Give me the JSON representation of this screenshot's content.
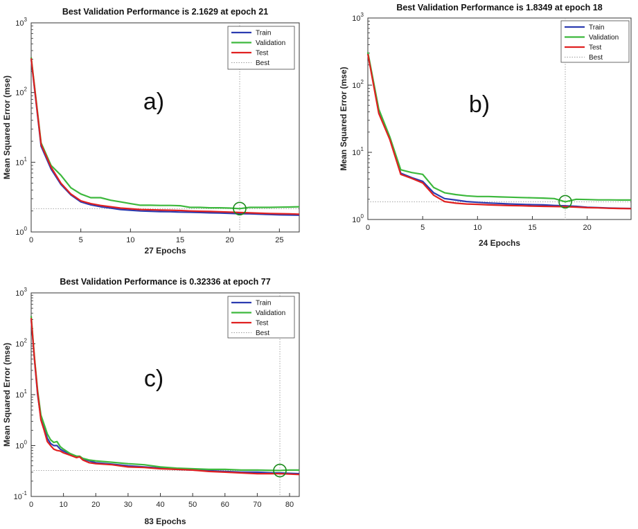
{
  "chart_data": [
    {
      "type": "line",
      "panel_label": "a)",
      "title": "Best Validation Performance is 2.1629 at epoch 21",
      "xlabel": "27 Epochs",
      "ylabel": "Mean Squared Error  (mse)",
      "yscale": "log",
      "xlim": [
        0,
        27
      ],
      "ylim": [
        1,
        1000
      ],
      "xticks": [
        0,
        5,
        10,
        15,
        20,
        25
      ],
      "yticks": [
        1,
        10,
        100,
        1000
      ],
      "ytick_labels": [
        {
          "base": "10",
          "exp": "0"
        },
        {
          "base": "10",
          "exp": "1"
        },
        {
          "base": "10",
          "exp": "2"
        },
        {
          "base": "10",
          "exp": "3"
        }
      ],
      "legend": {
        "position": "top-right",
        "entries": [
          "Train",
          "Validation",
          "Test",
          "Best"
        ]
      },
      "best": {
        "epoch": 21,
        "value": 2.1629
      },
      "series": [
        {
          "name": "Train",
          "color": "#2b3bb0",
          "x": [
            0,
            1,
            2,
            3,
            4,
            5,
            6,
            7,
            8,
            9,
            10,
            11,
            12,
            13,
            14,
            15,
            16,
            17,
            18,
            19,
            20,
            21,
            22,
            23,
            24,
            25,
            26,
            27
          ],
          "y": [
            300,
            17,
            8,
            4.8,
            3.4,
            2.7,
            2.45,
            2.3,
            2.2,
            2.1,
            2.05,
            2.0,
            1.98,
            1.96,
            1.95,
            1.93,
            1.92,
            1.9,
            1.88,
            1.87,
            1.85,
            1.83,
            1.82,
            1.8,
            1.78,
            1.76,
            1.75,
            1.74
          ]
        },
        {
          "name": "Validation",
          "color": "#3cb83c",
          "x": [
            0,
            1,
            2,
            3,
            4,
            5,
            6,
            7,
            8,
            9,
            10,
            11,
            12,
            13,
            14,
            15,
            16,
            17,
            18,
            19,
            20,
            21,
            22,
            23,
            24,
            25,
            26,
            27
          ],
          "y": [
            320,
            19,
            9,
            6.5,
            4.3,
            3.5,
            3.1,
            3.1,
            2.85,
            2.7,
            2.55,
            2.42,
            2.42,
            2.4,
            2.4,
            2.38,
            2.25,
            2.25,
            2.22,
            2.22,
            2.2,
            2.1629,
            2.25,
            2.25,
            2.25,
            2.27,
            2.28,
            2.3
          ]
        },
        {
          "name": "Test",
          "color": "#e02020",
          "x": [
            0,
            1,
            2,
            3,
            4,
            5,
            6,
            7,
            8,
            9,
            10,
            11,
            12,
            13,
            14,
            15,
            16,
            17,
            18,
            19,
            20,
            21,
            22,
            23,
            24,
            25,
            26,
            27
          ],
          "y": [
            310,
            18,
            8.5,
            5,
            3.5,
            2.8,
            2.55,
            2.4,
            2.3,
            2.2,
            2.15,
            2.1,
            2.08,
            2.06,
            2.05,
            2.03,
            2.0,
            1.98,
            1.97,
            1.95,
            1.93,
            1.9,
            1.88,
            1.86,
            1.84,
            1.83,
            1.82,
            1.8
          ]
        }
      ]
    },
    {
      "type": "line",
      "panel_label": "b)",
      "title": "Best Validation Performance is 1.8349 at epoch 18",
      "xlabel": "24 Epochs",
      "ylabel": "Mean Squared Error  (mse)",
      "yscale": "log",
      "xlim": [
        0,
        24
      ],
      "ylim": [
        1,
        1000
      ],
      "xticks": [
        0,
        5,
        10,
        15,
        20
      ],
      "yticks": [
        1,
        10,
        100,
        1000
      ],
      "ytick_labels": [
        {
          "base": "10",
          "exp": "0"
        },
        {
          "base": "10",
          "exp": "1"
        },
        {
          "base": "10",
          "exp": "2"
        },
        {
          "base": "10",
          "exp": "3"
        }
      ],
      "legend": {
        "position": "top-right",
        "entries": [
          "Train",
          "Validation",
          "Test",
          "Best"
        ]
      },
      "best": {
        "epoch": 18,
        "value": 1.8349
      },
      "series": [
        {
          "name": "Train",
          "color": "#2b3bb0",
          "x": [
            0,
            1,
            2,
            3,
            4,
            5,
            6,
            7,
            8,
            9,
            10,
            11,
            12,
            13,
            14,
            15,
            16,
            17,
            18,
            19,
            20,
            21,
            22,
            23,
            24
          ],
          "y": [
            300,
            40,
            16,
            4.9,
            4.2,
            3.7,
            2.5,
            2.05,
            1.95,
            1.85,
            1.8,
            1.76,
            1.73,
            1.7,
            1.68,
            1.66,
            1.65,
            1.62,
            1.6,
            1.57,
            1.52,
            1.5,
            1.48,
            1.47,
            1.46
          ]
        },
        {
          "name": "Validation",
          "color": "#3cb83c",
          "x": [
            0,
            1,
            2,
            3,
            4,
            5,
            6,
            7,
            8,
            9,
            10,
            11,
            12,
            13,
            14,
            15,
            16,
            17,
            18,
            19,
            20,
            21,
            22,
            23,
            24
          ],
          "y": [
            310,
            44,
            17,
            5.5,
            5,
            4.7,
            3,
            2.5,
            2.35,
            2.25,
            2.2,
            2.2,
            2.17,
            2.15,
            2.12,
            2.1,
            2.08,
            2.05,
            1.8349,
            2.0,
            1.98,
            1.96,
            1.96,
            1.95,
            1.95
          ]
        },
        {
          "name": "Test",
          "color": "#e02020",
          "x": [
            0,
            1,
            2,
            3,
            4,
            5,
            6,
            7,
            8,
            9,
            10,
            11,
            12,
            13,
            14,
            15,
            16,
            17,
            18,
            19,
            20,
            21,
            22,
            23,
            24
          ],
          "y": [
            290,
            38,
            15.5,
            4.7,
            4.1,
            3.5,
            2.3,
            1.85,
            1.75,
            1.7,
            1.68,
            1.65,
            1.63,
            1.61,
            1.6,
            1.58,
            1.57,
            1.56,
            1.55,
            1.53,
            1.5,
            1.49,
            1.47,
            1.46,
            1.45
          ]
        }
      ]
    },
    {
      "type": "line",
      "panel_label": "c)",
      "title": "Best Validation Performance is 0.32336 at epoch 77",
      "xlabel": "83 Epochs",
      "ylabel": "Mean Squared Error  (mse)",
      "yscale": "log",
      "xlim": [
        0,
        83
      ],
      "ylim": [
        0.1,
        1000
      ],
      "xticks": [
        0,
        10,
        20,
        30,
        40,
        50,
        60,
        70,
        80
      ],
      "yticks": [
        0.1,
        1,
        10,
        100,
        1000
      ],
      "ytick_labels": [
        {
          "base": "10",
          "exp": "-1"
        },
        {
          "base": "10",
          "exp": "0"
        },
        {
          "base": "10",
          "exp": "1"
        },
        {
          "base": "10",
          "exp": "2"
        },
        {
          "base": "10",
          "exp": "3"
        }
      ],
      "legend": {
        "position": "top-right",
        "entries": [
          "Train",
          "Validation",
          "Test",
          "Best"
        ]
      },
      "best": {
        "epoch": 77,
        "value": 0.32336
      },
      "series": [
        {
          "name": "Train",
          "color": "#2b3bb0",
          "x": [
            0,
            1,
            2,
            3,
            4,
            5,
            6,
            7,
            8,
            9,
            10,
            12,
            14,
            15,
            16,
            18,
            20,
            25,
            30,
            35,
            40,
            45,
            50,
            55,
            60,
            65,
            70,
            75,
            77,
            80,
            83
          ],
          "y": [
            300,
            50,
            10,
            3.5,
            2.2,
            1.4,
            1.1,
            1.0,
            1.0,
            0.85,
            0.78,
            0.68,
            0.62,
            0.6,
            0.55,
            0.5,
            0.46,
            0.43,
            0.4,
            0.38,
            0.36,
            0.34,
            0.33,
            0.32,
            0.31,
            0.3,
            0.3,
            0.29,
            0.29,
            0.285,
            0.28
          ]
        },
        {
          "name": "Validation",
          "color": "#3cb83c",
          "x": [
            0,
            1,
            2,
            3,
            4,
            5,
            6,
            7,
            8,
            9,
            10,
            12,
            14,
            15,
            16,
            18,
            20,
            25,
            30,
            35,
            40,
            45,
            50,
            55,
            60,
            65,
            70,
            75,
            77,
            80,
            83
          ],
          "y": [
            350,
            55,
            12,
            4,
            2.6,
            1.7,
            1.3,
            1.15,
            1.2,
            0.95,
            0.85,
            0.7,
            0.62,
            0.62,
            0.56,
            0.52,
            0.5,
            0.47,
            0.44,
            0.42,
            0.38,
            0.36,
            0.35,
            0.34,
            0.34,
            0.33,
            0.33,
            0.325,
            0.32336,
            0.33,
            0.33
          ]
        },
        {
          "name": "Test",
          "color": "#e02020",
          "x": [
            0,
            1,
            2,
            3,
            4,
            5,
            6,
            7,
            8,
            9,
            10,
            12,
            14,
            15,
            16,
            18,
            20,
            25,
            30,
            35,
            40,
            45,
            50,
            55,
            60,
            65,
            70,
            75,
            77,
            80,
            83
          ],
          "y": [
            320,
            52,
            11,
            3.2,
            2.0,
            1.2,
            1.0,
            0.85,
            0.8,
            0.78,
            0.72,
            0.65,
            0.58,
            0.6,
            0.52,
            0.46,
            0.44,
            0.42,
            0.38,
            0.37,
            0.35,
            0.34,
            0.33,
            0.31,
            0.3,
            0.29,
            0.28,
            0.28,
            0.28,
            0.275,
            0.27
          ]
        }
      ]
    }
  ],
  "colors": {
    "best_line": "#9a9a9a",
    "best_circle": "#1a8a1a",
    "axes": "#333333"
  }
}
